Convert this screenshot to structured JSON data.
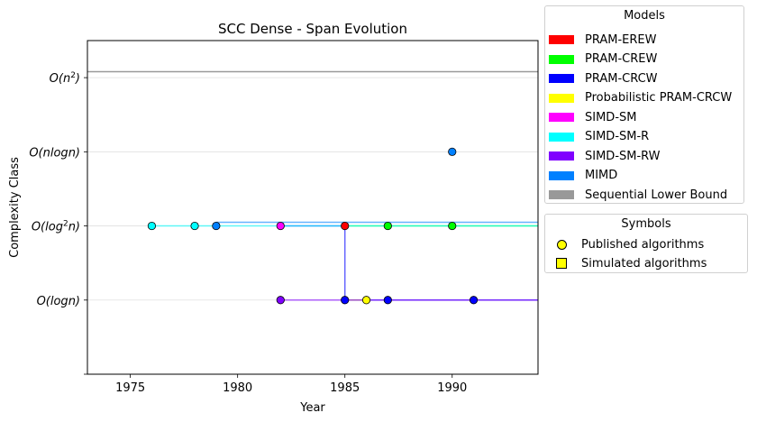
{
  "chart_data": {
    "type": "line",
    "title": "SCC Dense - Span Evolution",
    "xlabel": "Year",
    "ylabel": "Complexity Class",
    "xlim": [
      1973,
      1994
    ],
    "ylim": [
      0,
      4.5
    ],
    "x_ticks": [
      1975,
      1980,
      1985,
      1990
    ],
    "y_ticks": [
      {
        "value": 1,
        "base": "O(log",
        "sup": "",
        "rest": "n)"
      },
      {
        "value": 2,
        "base": "O(log",
        "sup": "2",
        "rest": "n)"
      },
      {
        "value": 3,
        "base": "O(nlog",
        "sup": "",
        "rest": "n)"
      },
      {
        "value": 4,
        "base": "O(n",
        "sup": "2",
        "rest": ")"
      }
    ],
    "grid": "horizontal",
    "sequential_lower_bound": {
      "name": "Sequential Lower Bound",
      "value": 4.08,
      "color": "#999999"
    },
    "series": [
      {
        "name": "PRAM-EREW",
        "color": "#ff0000",
        "points": [
          [
            1985,
            2
          ]
        ]
      },
      {
        "name": "PRAM-CREW",
        "color": "#00ff00",
        "points": [
          [
            1987,
            2
          ],
          [
            1990,
            2
          ]
        ],
        "line": [
          [
            1985,
            2
          ],
          [
            1994,
            2
          ]
        ]
      },
      {
        "name": "PRAM-CRCW",
        "color": "#0000ff",
        "points": [
          [
            1985,
            1
          ],
          [
            1987,
            1
          ],
          [
            1991,
            1
          ]
        ],
        "line": [
          [
            1982,
            2
          ],
          [
            1985,
            2
          ],
          [
            1985,
            1
          ],
          [
            1994,
            1
          ]
        ]
      },
      {
        "name": "Probabilistic PRAM-CRCW",
        "color": "#ffff00",
        "points": [
          [
            1986,
            1
          ]
        ],
        "line": [
          [
            1985,
            1
          ],
          [
            1986,
            1
          ]
        ]
      },
      {
        "name": "SIMD-SM",
        "color": "#ff00ff",
        "points": [
          [
            1982,
            2
          ]
        ]
      },
      {
        "name": "SIMD-SM-R",
        "color": "#00ffff",
        "points": [
          [
            1976,
            2
          ],
          [
            1978,
            2
          ]
        ],
        "line": [
          [
            1976,
            2
          ],
          [
            1994,
            2
          ]
        ]
      },
      {
        "name": "SIMD-SM-RW",
        "color": "#8000ff",
        "points": [
          [
            1982,
            1
          ]
        ],
        "line": [
          [
            1982,
            1
          ],
          [
            1994,
            1
          ]
        ]
      },
      {
        "name": "MIMD",
        "color": "#0080ff",
        "points": [
          [
            1979,
            2
          ],
          [
            1990,
            3
          ]
        ],
        "line": [
          [
            1979,
            2.05
          ],
          [
            1994,
            2.05
          ]
        ]
      }
    ],
    "legends": {
      "models_title": "Models",
      "symbols_title": "Symbols",
      "symbols": [
        {
          "label": "Published algorithms",
          "marker": "circle"
        },
        {
          "label": "Simulated algorithms",
          "marker": "square"
        }
      ]
    }
  }
}
